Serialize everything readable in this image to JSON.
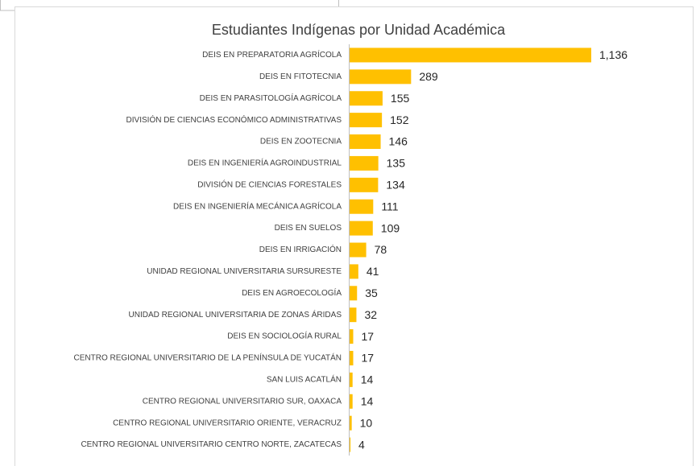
{
  "chart_data": {
    "type": "bar",
    "orientation": "horizontal",
    "title": "Estudiantes Indígenas por Unidad Académica",
    "categories": [
      "DEIS EN PREPARATORIA AGRÍCOLA",
      "DEIS EN FITOTECNIA",
      "DEIS EN PARASITOLOGÍA AGRÍCOLA",
      "DIVISIÓN DE CIENCIAS ECONÓMICO ADMINISTRATIVAS",
      "DEIS EN ZOOTECNIA",
      "DEIS EN INGENIERÍA AGROINDUSTRIAL",
      "DIVISIÓN DE CIENCIAS FORESTALES",
      "DEIS EN INGENIERÍA MECÁNICA AGRÍCOLA",
      "DEIS EN SUELOS",
      "DEIS EN IRRIGACIÓN",
      "UNIDAD REGIONAL UNIVERSITARIA SURSURESTE",
      "DEIS EN AGROECOLOGÍA",
      "UNIDAD REGIONAL UNIVERSITARIA DE ZONAS ÁRIDAS",
      "DEIS EN SOCIOLOGÍA RURAL",
      "CENTRO REGIONAL UNIVERSITARIO DE LA PENÍNSULA DE YUCATÁN",
      "SAN LUIS ACATLÁN",
      "CENTRO REGIONAL UNIVERSITARIO SUR, OAXACA",
      "CENTRO REGIONAL UNIVERSITARIO ORIENTE, VERACRUZ",
      "CENTRO REGIONAL UNIVERSITARIO CENTRO NORTE, ZACATECAS"
    ],
    "values": [
      1136,
      289,
      155,
      152,
      146,
      135,
      134,
      111,
      109,
      78,
      41,
      35,
      32,
      17,
      17,
      14,
      14,
      10,
      4
    ],
    "value_labels": [
      "1,136",
      "289",
      "155",
      "152",
      "146",
      "135",
      "134",
      "111",
      "109",
      "78",
      "41",
      "35",
      "32",
      "17",
      "17",
      "14",
      "14",
      "10",
      "4"
    ],
    "color": "#FFC000"
  }
}
